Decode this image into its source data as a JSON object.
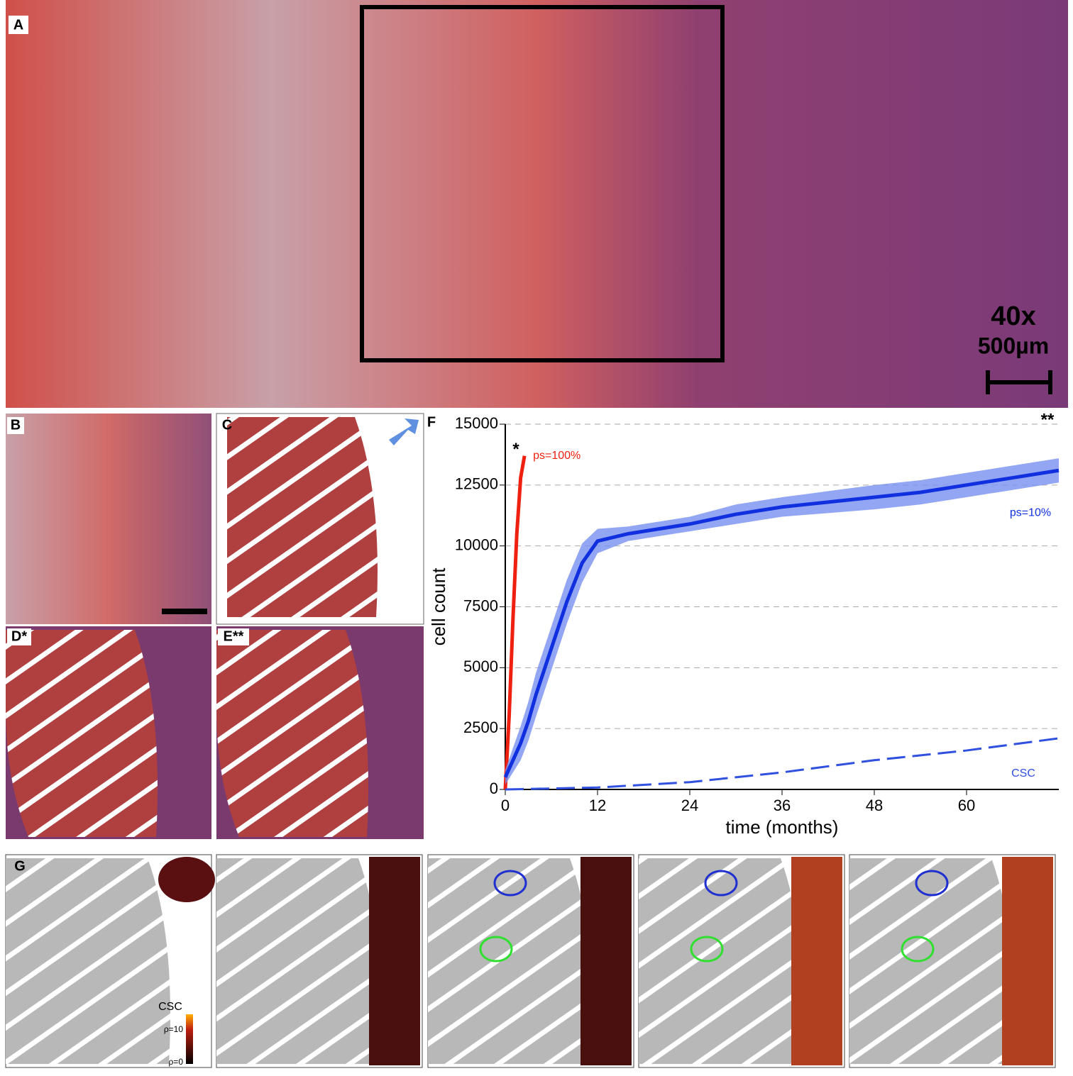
{
  "panels": {
    "a": {
      "label": "A",
      "magnification": "40x",
      "scale": "500µm"
    },
    "b": {
      "label": "B"
    },
    "c": {
      "label": "C"
    },
    "d": {
      "label": "D*"
    },
    "e": {
      "label": "E**"
    },
    "f": {
      "label": "F"
    },
    "g": {
      "label": "G",
      "legend_title": "CSC",
      "legend_high": "ρ=10",
      "legend_low": "ρ=0"
    }
  },
  "chart_data": {
    "type": "line",
    "xlabel": "time (months)",
    "ylabel": "cell count",
    "xlim": [
      0,
      72
    ],
    "ylim": [
      0,
      15000
    ],
    "xticks": [
      0,
      12,
      24,
      36,
      48,
      60
    ],
    "yticks": [
      0,
      2500,
      5000,
      7500,
      10000,
      12500,
      15000
    ],
    "grid": true,
    "annotations": [
      "*",
      "**"
    ],
    "series": [
      {
        "name": "ps=100%",
        "color": "#f02010",
        "x": [
          0,
          0.5,
          1,
          1.5,
          2,
          2.5
        ],
        "values": [
          0,
          3000,
          7000,
          10500,
          12800,
          13700
        ]
      },
      {
        "name": "ps=10%",
        "color": "#1030e0",
        "band_color": "#7890f0",
        "x": [
          0,
          1,
          2,
          3,
          4,
          6,
          8,
          10,
          12,
          16,
          20,
          24,
          30,
          36,
          42,
          48,
          54,
          60,
          66,
          72
        ],
        "values": [
          500,
          1200,
          1900,
          2800,
          3900,
          5800,
          7700,
          9300,
          10200,
          10500,
          10700,
          10900,
          11300,
          11600,
          11800,
          12000,
          12200,
          12500,
          12800,
          13100
        ],
        "errors": [
          300,
          500,
          700,
          800,
          900,
          900,
          900,
          800,
          500,
          300,
          300,
          300,
          400,
          400,
          450,
          500,
          500,
          500,
          500,
          500
        ]
      },
      {
        "name": "CSC",
        "color": "#3050e0",
        "dashed": true,
        "x": [
          0,
          12,
          24,
          36,
          48,
          60,
          72
        ],
        "values": [
          0,
          80,
          300,
          700,
          1200,
          1600,
          2100
        ]
      }
    ]
  }
}
